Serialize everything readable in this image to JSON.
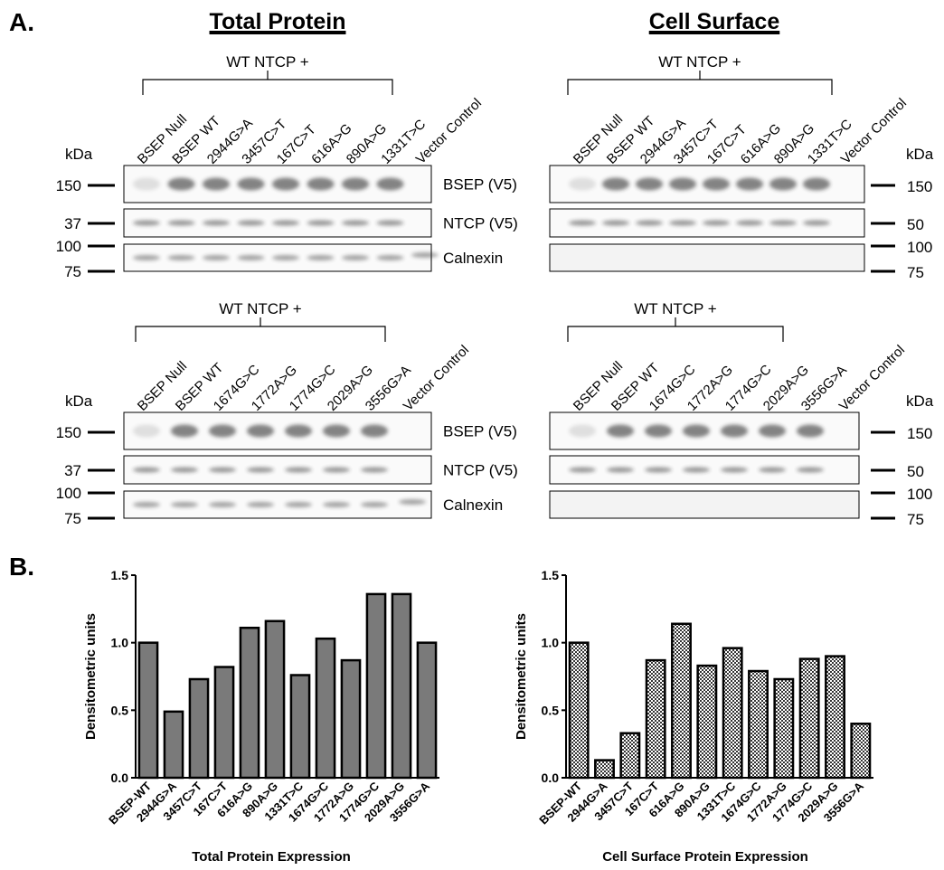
{
  "panel_labels": [
    "A.",
    "B."
  ],
  "blots": [
    {
      "title": "Total Protein",
      "groups": [
        {
          "header": "WT NTCP +",
          "kda": "kDa",
          "lanes": [
            "BSEP Null",
            "BSEP WT",
            "2944G>A",
            "3457C>T",
            "167C>T",
            "616A>G",
            "890A>G",
            "1331T>C",
            "Vector Control"
          ],
          "markers": [
            150,
            37,
            100,
            75
          ],
          "rows": [
            "BSEP (V5)",
            "NTCP (V5)",
            "Calnexin"
          ]
        },
        {
          "header": "WT NTCP +",
          "kda": "kDa",
          "lanes": [
            "BSEP Null",
            "BSEP WT",
            "1674G>C",
            "1772A>G",
            "1774G>C",
            "2029A>G",
            "3556G>A",
            "Vector Control"
          ],
          "markers": [
            150,
            37,
            100,
            75
          ],
          "rows": [
            "BSEP (V5)",
            "NTCP (V5)",
            "Calnexin"
          ]
        }
      ]
    },
    {
      "title": "Cell Surface",
      "groups": [
        {
          "header": "WT NTCP +",
          "kda": "kDa",
          "lanes": [
            "BSEP Null",
            "BSEP WT",
            "2944G>A",
            "3457C>T",
            "167C>T",
            "616A>G",
            "890A>G",
            "1331T>C",
            "Vector Control"
          ],
          "markers": [
            150,
            50,
            100,
            75
          ]
        },
        {
          "header": "WT NTCP +",
          "kda": "kDa",
          "lanes": [
            "BSEP Null",
            "BSEP WT",
            "1674G>C",
            "1772A>G",
            "1774G>C",
            "2029A>G",
            "3556G>A",
            "Vector Control"
          ],
          "markers": [
            150,
            50,
            100,
            75
          ]
        }
      ]
    }
  ],
  "chart_data": [
    {
      "type": "bar",
      "ylabel": "Densitometric units",
      "xlabel": "Total Protein Expression",
      "categories": [
        "BSEP-WT",
        "2944G>A",
        "3457C>T",
        "167C>T",
        "616A>G",
        "890A>G",
        "1331T>C",
        "1674G>C",
        "1772A>G",
        "1774G>C",
        "2029A>G",
        "3556G>A"
      ],
      "values": [
        1.0,
        0.49,
        0.73,
        0.82,
        1.11,
        1.16,
        0.76,
        1.03,
        0.87,
        1.36,
        1.36,
        1.0
      ],
      "color": "#7a7a7a",
      "ylim": [
        0,
        1.5
      ],
      "yticks": [
        {
          "value": 0,
          "label": "0.0"
        },
        0.5,
        {
          "value": 1,
          "label": "1.0"
        },
        1.5
      ]
    },
    {
      "type": "bar",
      "ylabel": "Densitometric units",
      "xlabel": "Cell Surface Protein Expression",
      "categories": [
        "BSEP-WT",
        "2944G>A",
        "3457C>T",
        "167C>T",
        "616A>G",
        "890A>G",
        "1331T>C",
        "1674G>C",
        "1772A>G",
        "1774G>C",
        "2029A>G",
        "3556G>A"
      ],
      "values": [
        1.0,
        0.13,
        0.33,
        0.87,
        1.14,
        0.83,
        0.96,
        0.79,
        0.73,
        0.88,
        0.9,
        0.4
      ],
      "color": "checkered",
      "ylim": [
        0,
        1.5
      ],
      "yticks": [
        {
          "value": 0,
          "label": "0.0"
        },
        0.5,
        {
          "value": 1,
          "label": "1.0"
        },
        1.5
      ]
    }
  ]
}
